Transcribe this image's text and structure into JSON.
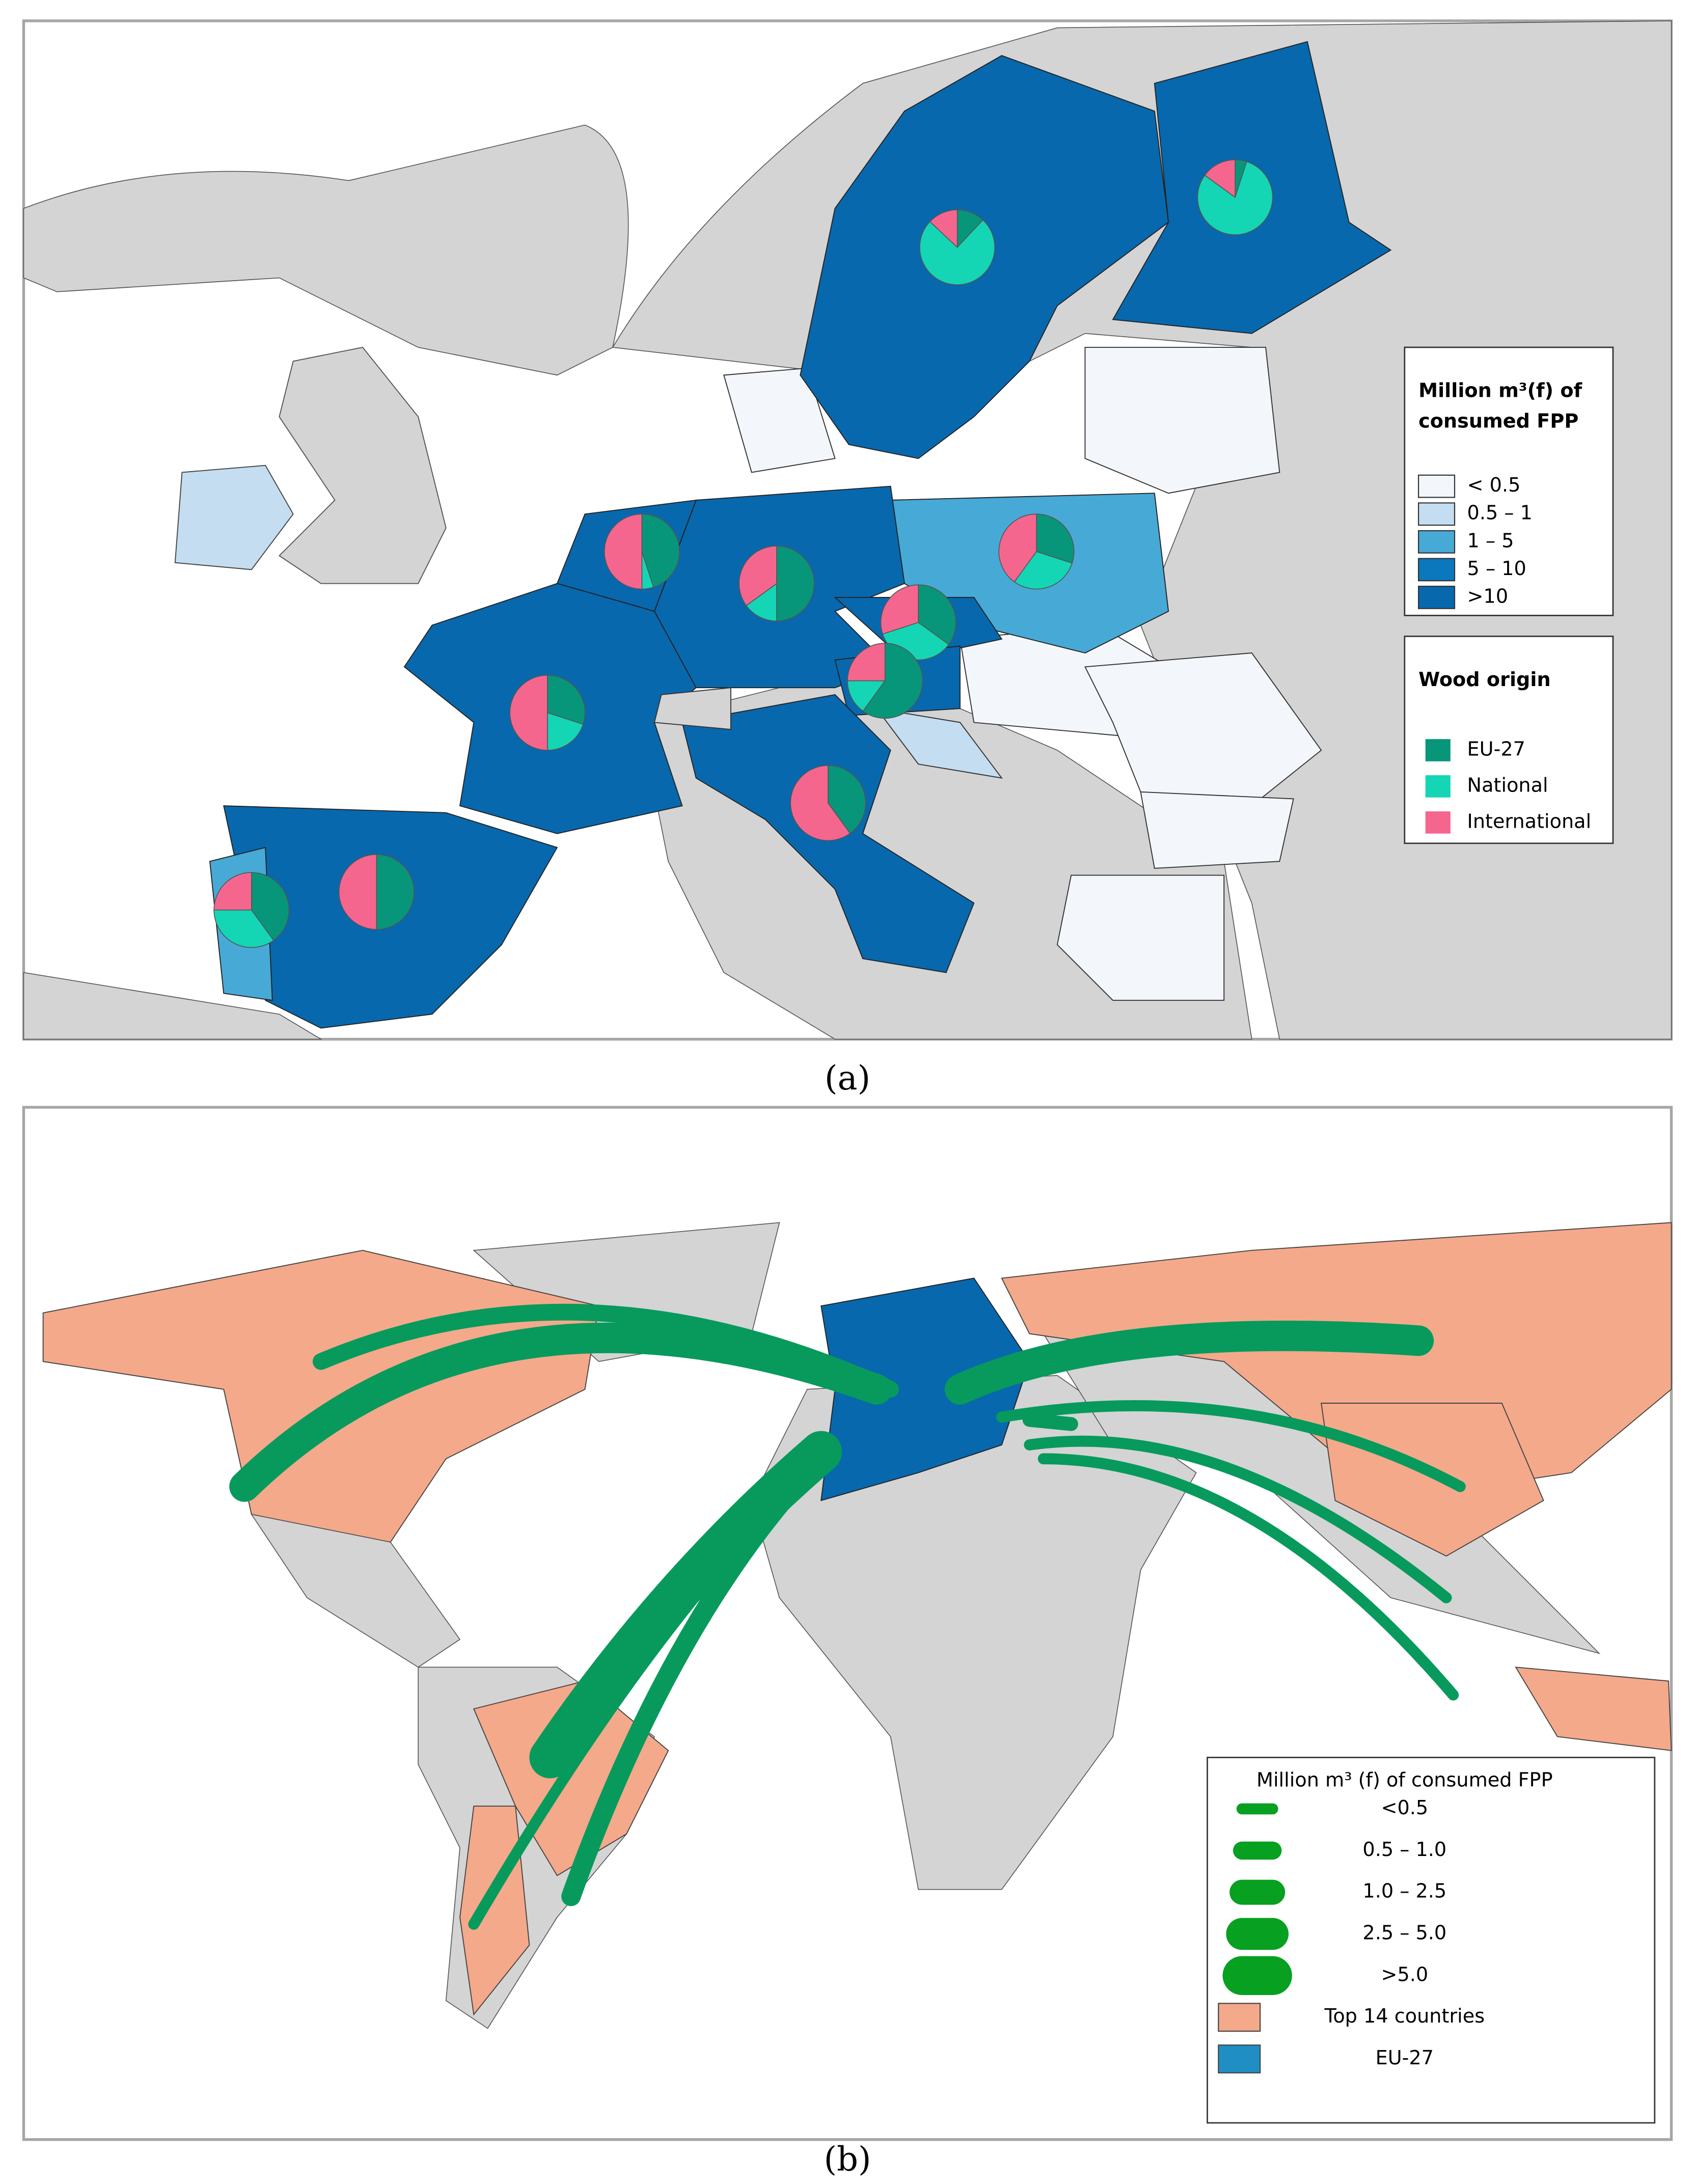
{
  "panel_a": {
    "caption": "(a)",
    "legend_consumption": {
      "title": [
        "Million m³(f) of",
        "consumed FPP"
      ],
      "classes": [
        {
          "label": "< 0.5",
          "color": "#f3f7fc"
        },
        {
          "label": "0.5 – 1",
          "color": "#c5ddf0"
        },
        {
          "label": "1 – 5",
          "color": "#47a9d6"
        },
        {
          "label": "5 – 10",
          "color": "#0b77bd"
        },
        {
          "label": ">10",
          "color": "#0868ad"
        }
      ]
    },
    "legend_origin": {
      "title": "Wood origin",
      "items": [
        {
          "label": "EU-27",
          "color": "#08967a"
        },
        {
          "label": "National",
          "color": "#14d6b5"
        },
        {
          "label": "International",
          "color": "#f5668f"
        }
      ]
    },
    "pies": [
      {
        "values": [
          12,
          75,
          13
        ]
      },
      {
        "values": [
          5,
          80,
          15
        ]
      },
      {
        "values": [
          30,
          30,
          40
        ]
      },
      {
        "values": [
          50,
          15,
          35
        ]
      },
      {
        "values": [
          45,
          5,
          50
        ]
      },
      {
        "values": [
          35,
          35,
          30
        ]
      },
      {
        "values": [
          60,
          15,
          25
        ]
      },
      {
        "values": [
          30,
          20,
          50
        ]
      },
      {
        "values": [
          40,
          0,
          60
        ]
      },
      {
        "values": [
          50,
          0,
          50
        ]
      },
      {
        "values": [
          40,
          35,
          25
        ]
      }
    ]
  },
  "panel_b": {
    "caption": "(b)",
    "legend": {
      "title": "Million m³ (f) of consumed FPP",
      "flow_classes": [
        "<0.5",
        "0.5 – 1.0",
        "1.0 – 2.5",
        "2.5 – 5.0",
        ">5.0"
      ],
      "flow_color": "#07a020",
      "areas": [
        {
          "label": "Top 14 countries",
          "color": "#f4a98a"
        },
        {
          "label": "EU-27",
          "color": "#1f8fc3"
        }
      ]
    }
  }
}
